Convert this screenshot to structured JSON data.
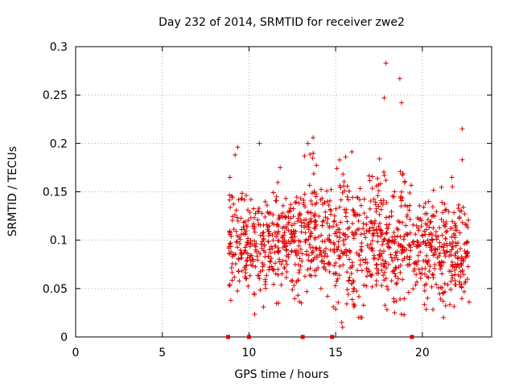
{
  "chart_data": {
    "type": "scatter",
    "title": "Day 232 of 2014, SRMTID for receiver zwe2",
    "xlabel": "GPS time / hours",
    "ylabel": "SRMTID / TECUs",
    "xlim": [
      0,
      24
    ],
    "ylim": [
      0,
      0.3
    ],
    "grid": true,
    "x_ticks": [
      0,
      5,
      10,
      15,
      20
    ],
    "x_tick_labels": [
      "0",
      "5",
      "10",
      "15",
      "20"
    ],
    "y_ticks": [
      0,
      0.05,
      0.1,
      0.15,
      0.2,
      0.25,
      0.3
    ],
    "y_tick_labels": [
      "0",
      "0.05",
      "0.1",
      "0.15",
      "0.2",
      "0.25",
      "0.3"
    ],
    "series_color": "#dd0000",
    "marker": "plus",
    "gap_markers_x": [
      8.8,
      10.0,
      13.1,
      14.8,
      19.4
    ],
    "segments": [
      {
        "x_start": 8.8,
        "x_end": 10.0,
        "baseline": 0.1,
        "spread": 0.028,
        "peaks": [
          {
            "x": 9.35,
            "y": 0.196
          },
          {
            "x": 9.2,
            "y": 0.188
          },
          {
            "x": 8.9,
            "y": 0.165
          }
        ]
      },
      {
        "x_start": 10.0,
        "x_end": 13.1,
        "baseline": 0.095,
        "spread": 0.026,
        "peaks": [
          {
            "x": 10.6,
            "y": 0.2
          },
          {
            "x": 11.8,
            "y": 0.175
          },
          {
            "x": 11.7,
            "y": 0.035
          },
          {
            "x": 10.3,
            "y": 0.045
          }
        ]
      },
      {
        "x_start": 13.1,
        "x_end": 14.8,
        "baseline": 0.11,
        "spread": 0.03,
        "peaks": [
          {
            "x": 13.4,
            "y": 0.2
          },
          {
            "x": 13.7,
            "y": 0.206
          },
          {
            "x": 13.2,
            "y": 0.187
          }
        ]
      },
      {
        "x_start": 14.8,
        "x_end": 19.4,
        "baseline": 0.1,
        "spread": 0.035,
        "peaks": [
          {
            "x": 17.9,
            "y": 0.283
          },
          {
            "x": 18.7,
            "y": 0.267
          },
          {
            "x": 18.8,
            "y": 0.242
          },
          {
            "x": 17.8,
            "y": 0.247
          },
          {
            "x": 15.4,
            "y": 0.01
          },
          {
            "x": 15.35,
            "y": 0.015
          },
          {
            "x": 18.4,
            "y": 0.025
          }
        ]
      },
      {
        "x_start": 19.4,
        "x_end": 22.7,
        "baseline": 0.09,
        "spread": 0.027,
        "peaks": [
          {
            "x": 22.3,
            "y": 0.215
          },
          {
            "x": 22.3,
            "y": 0.183
          },
          {
            "x": 21.7,
            "y": 0.165
          },
          {
            "x": 21.2,
            "y": 0.037
          },
          {
            "x": 22.7,
            "y": 0.036
          }
        ]
      }
    ]
  }
}
